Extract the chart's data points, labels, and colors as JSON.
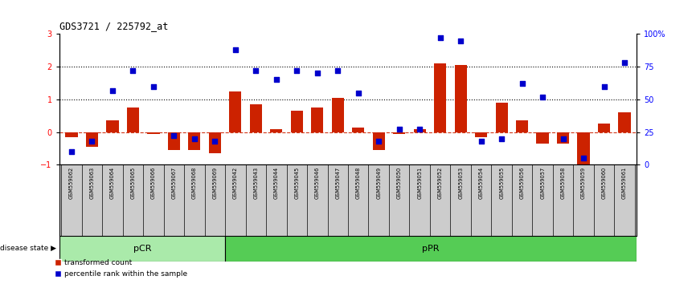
{
  "title": "GDS3721 / 225792_at",
  "samples": [
    "GSM559062",
    "GSM559063",
    "GSM559064",
    "GSM559065",
    "GSM559066",
    "GSM559067",
    "GSM559068",
    "GSM559069",
    "GSM559042",
    "GSM559043",
    "GSM559044",
    "GSM559045",
    "GSM559046",
    "GSM559047",
    "GSM559048",
    "GSM559049",
    "GSM559050",
    "GSM559051",
    "GSM559052",
    "GSM559053",
    "GSM559054",
    "GSM559055",
    "GSM559056",
    "GSM559057",
    "GSM559058",
    "GSM559059",
    "GSM559060",
    "GSM559061"
  ],
  "transformed_count": [
    -0.15,
    -0.45,
    0.35,
    0.75,
    -0.05,
    -0.55,
    -0.55,
    -0.65,
    1.25,
    0.85,
    0.1,
    0.65,
    0.75,
    1.05,
    0.15,
    -0.55,
    -0.05,
    0.1,
    2.1,
    2.05,
    -0.15,
    0.9,
    0.35,
    -0.35,
    -0.35,
    -1.05,
    0.25,
    0.6
  ],
  "percentile_rank": [
    10,
    18,
    57,
    72,
    60,
    22,
    20,
    18,
    88,
    72,
    65,
    72,
    70,
    72,
    55,
    18,
    27,
    27,
    97,
    95,
    18,
    20,
    62,
    52,
    20,
    5,
    60,
    78
  ],
  "pCR_count": 8,
  "pPR_count": 20,
  "bar_color": "#cc2200",
  "dot_color": "#0000cc",
  "pCR_color": "#aaeaaa",
  "pPR_color": "#55cc55",
  "tick_bg_color": "#cccccc",
  "background_color": "#ffffff",
  "ylim": [
    -1.0,
    3.0
  ],
  "y2lim": [
    0,
    100
  ],
  "yticks": [
    -1,
    0,
    1,
    2,
    3
  ],
  "y2ticks": [
    0,
    25,
    50,
    75,
    100
  ]
}
